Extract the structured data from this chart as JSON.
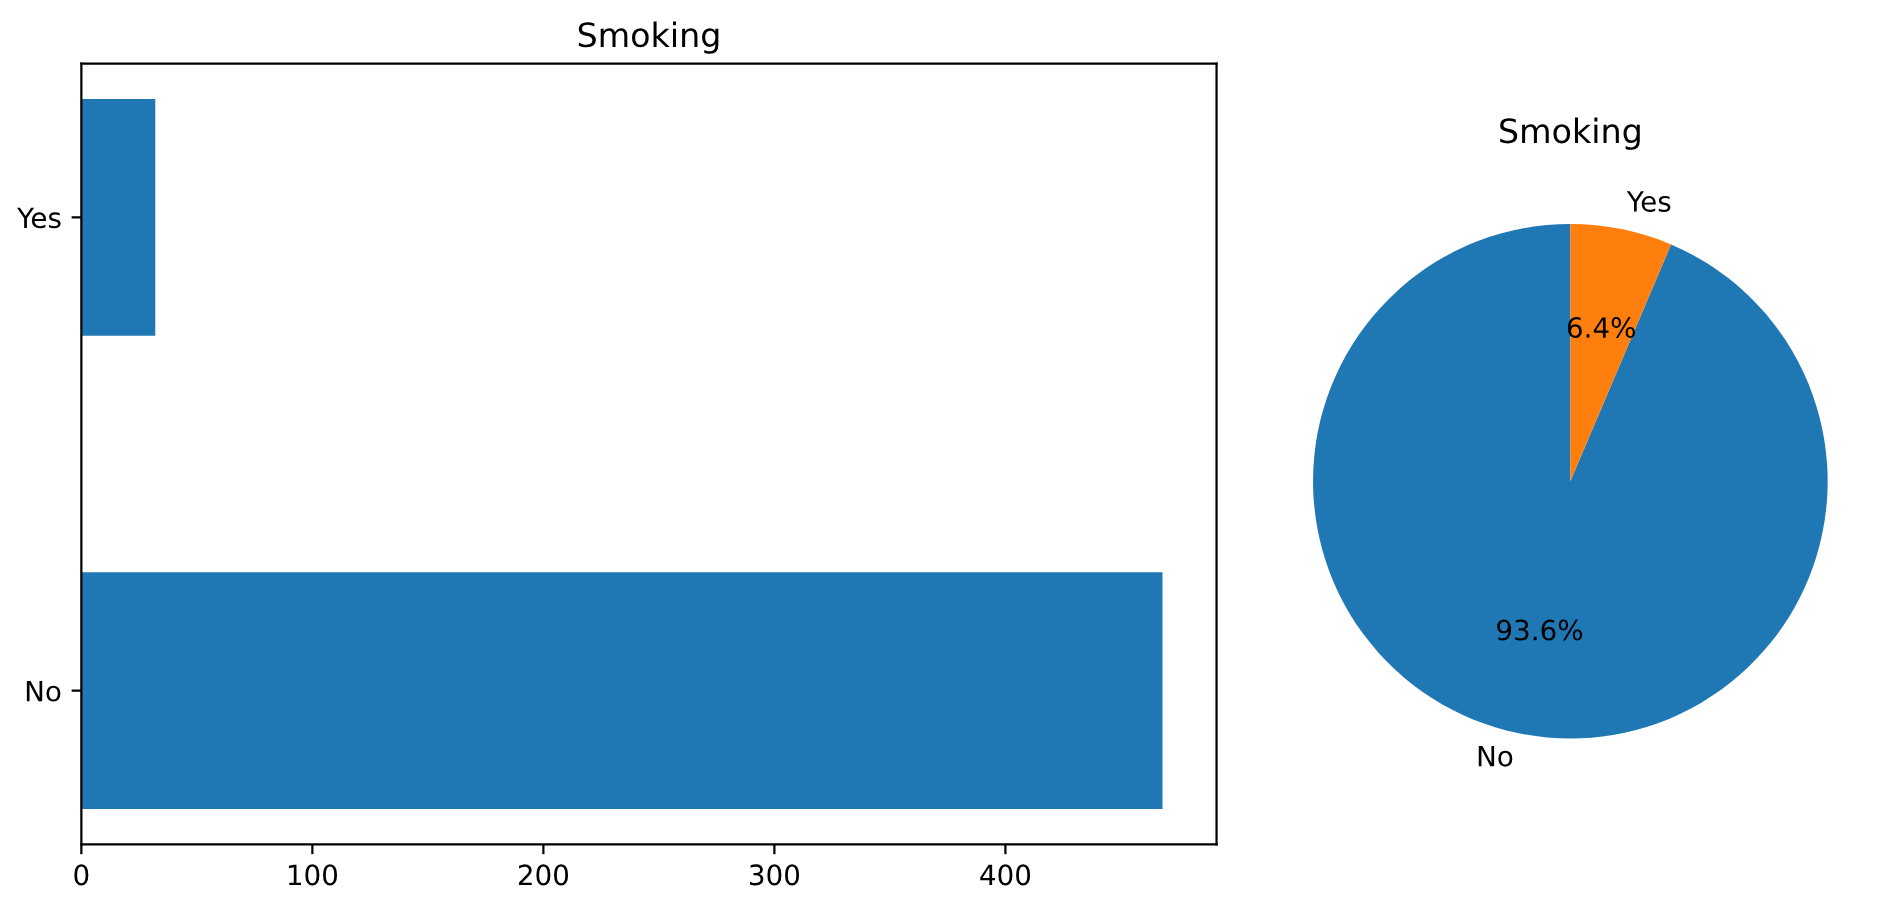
{
  "chart_data": [
    {
      "type": "bar",
      "title": "Smoking",
      "orientation": "horizontal",
      "categories": [
        "Yes",
        "No"
      ],
      "values": [
        32,
        468
      ],
      "color": "#1f77b4",
      "xlim": [
        0,
        491.4
      ],
      "xticks": [
        0,
        100,
        200,
        300,
        400
      ]
    },
    {
      "type": "pie",
      "title": "Smoking",
      "categories": [
        "No",
        "Yes"
      ],
      "values": [
        93.6,
        6.4
      ],
      "colors": [
        "#1f77b4",
        "#ff7f0e"
      ],
      "value_labels": [
        "93.6%",
        "6.4%"
      ]
    }
  ]
}
